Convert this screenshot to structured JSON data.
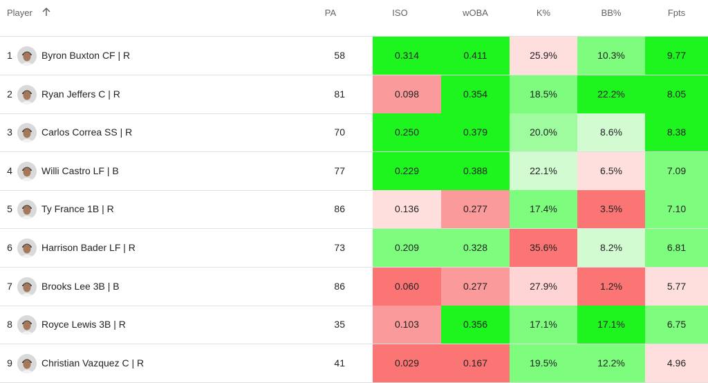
{
  "columns": {
    "player": "Player",
    "pa": "PA",
    "iso": "ISO",
    "woba": "wOBA",
    "k": "K%",
    "bb": "BB%",
    "fpts": "Fpts"
  },
  "sort": {
    "column": "Player",
    "direction": "ascending",
    "icon": "arrow-up-icon"
  },
  "colors": {
    "strong_green": "#1ef51e",
    "green": "#7dfc7d",
    "light_green": "#d2fbd2",
    "light_red": "#ffdede",
    "red": "#fb9a9a",
    "strong_red": "#fb7575"
  },
  "rows": [
    {
      "rank": "1",
      "player": "Byron Buxton CF | R",
      "pa": "58",
      "iso": {
        "value": "0.314",
        "color": "#1ef51e"
      },
      "woba": {
        "value": "0.411",
        "color": "#1ef51e"
      },
      "k": {
        "value": "25.9%",
        "color": "#ffdede"
      },
      "bb": {
        "value": "10.3%",
        "color": "#7dfc7d"
      },
      "fpts": {
        "value": "9.77",
        "color": "#1ef51e"
      }
    },
    {
      "rank": "2",
      "player": "Ryan Jeffers C | R",
      "pa": "81",
      "iso": {
        "value": "0.098",
        "color": "#fb9a9a"
      },
      "woba": {
        "value": "0.354",
        "color": "#1ef51e"
      },
      "k": {
        "value": "18.5%",
        "color": "#7dfc7d"
      },
      "bb": {
        "value": "22.2%",
        "color": "#1ef51e"
      },
      "fpts": {
        "value": "8.05",
        "color": "#1ef51e"
      }
    },
    {
      "rank": "3",
      "player": "Carlos Correa SS | R",
      "pa": "70",
      "iso": {
        "value": "0.250",
        "color": "#1ef51e"
      },
      "woba": {
        "value": "0.379",
        "color": "#1ef51e"
      },
      "k": {
        "value": "20.0%",
        "color": "#9efc9e"
      },
      "bb": {
        "value": "8.6%",
        "color": "#d2fbd2"
      },
      "fpts": {
        "value": "8.38",
        "color": "#1ef51e"
      }
    },
    {
      "rank": "4",
      "player": "Willi Castro LF | B",
      "pa": "77",
      "iso": {
        "value": "0.229",
        "color": "#1ef51e"
      },
      "woba": {
        "value": "0.388",
        "color": "#1ef51e"
      },
      "k": {
        "value": "22.1%",
        "color": "#d2fbd2"
      },
      "bb": {
        "value": "6.5%",
        "color": "#ffdede"
      },
      "fpts": {
        "value": "7.09",
        "color": "#7dfc7d"
      }
    },
    {
      "rank": "5",
      "player": "Ty France 1B | R",
      "pa": "86",
      "iso": {
        "value": "0.136",
        "color": "#ffdede"
      },
      "woba": {
        "value": "0.277",
        "color": "#fb9a9a"
      },
      "k": {
        "value": "17.4%",
        "color": "#7dfc7d"
      },
      "bb": {
        "value": "3.5%",
        "color": "#fb7575"
      },
      "fpts": {
        "value": "7.10",
        "color": "#7dfc7d"
      }
    },
    {
      "rank": "6",
      "player": "Harrison Bader LF | R",
      "pa": "73",
      "iso": {
        "value": "0.209",
        "color": "#7dfc7d"
      },
      "woba": {
        "value": "0.328",
        "color": "#7dfc7d"
      },
      "k": {
        "value": "35.6%",
        "color": "#fb7575"
      },
      "bb": {
        "value": "8.2%",
        "color": "#d2fbd2"
      },
      "fpts": {
        "value": "6.81",
        "color": "#7dfc7d"
      }
    },
    {
      "rank": "7",
      "player": "Brooks Lee 3B | B",
      "pa": "86",
      "iso": {
        "value": "0.060",
        "color": "#fb7575"
      },
      "woba": {
        "value": "0.277",
        "color": "#fb9a9a"
      },
      "k": {
        "value": "27.9%",
        "color": "#ffd4d4"
      },
      "bb": {
        "value": "1.2%",
        "color": "#fb7575"
      },
      "fpts": {
        "value": "5.77",
        "color": "#ffdede"
      }
    },
    {
      "rank": "8",
      "player": "Royce Lewis 3B | R",
      "pa": "35",
      "iso": {
        "value": "0.103",
        "color": "#fb9a9a"
      },
      "woba": {
        "value": "0.356",
        "color": "#1ef51e"
      },
      "k": {
        "value": "17.1%",
        "color": "#7dfc7d"
      },
      "bb": {
        "value": "17.1%",
        "color": "#1ef51e"
      },
      "fpts": {
        "value": "6.75",
        "color": "#7dfc7d"
      }
    },
    {
      "rank": "9",
      "player": "Christian Vazquez C | R",
      "pa": "41",
      "iso": {
        "value": "0.029",
        "color": "#fb7575"
      },
      "woba": {
        "value": "0.167",
        "color": "#fb7575"
      },
      "k": {
        "value": "19.5%",
        "color": "#7dfc7d"
      },
      "bb": {
        "value": "12.2%",
        "color": "#7dfc7d"
      },
      "fpts": {
        "value": "4.96",
        "color": "#ffdede"
      }
    }
  ]
}
